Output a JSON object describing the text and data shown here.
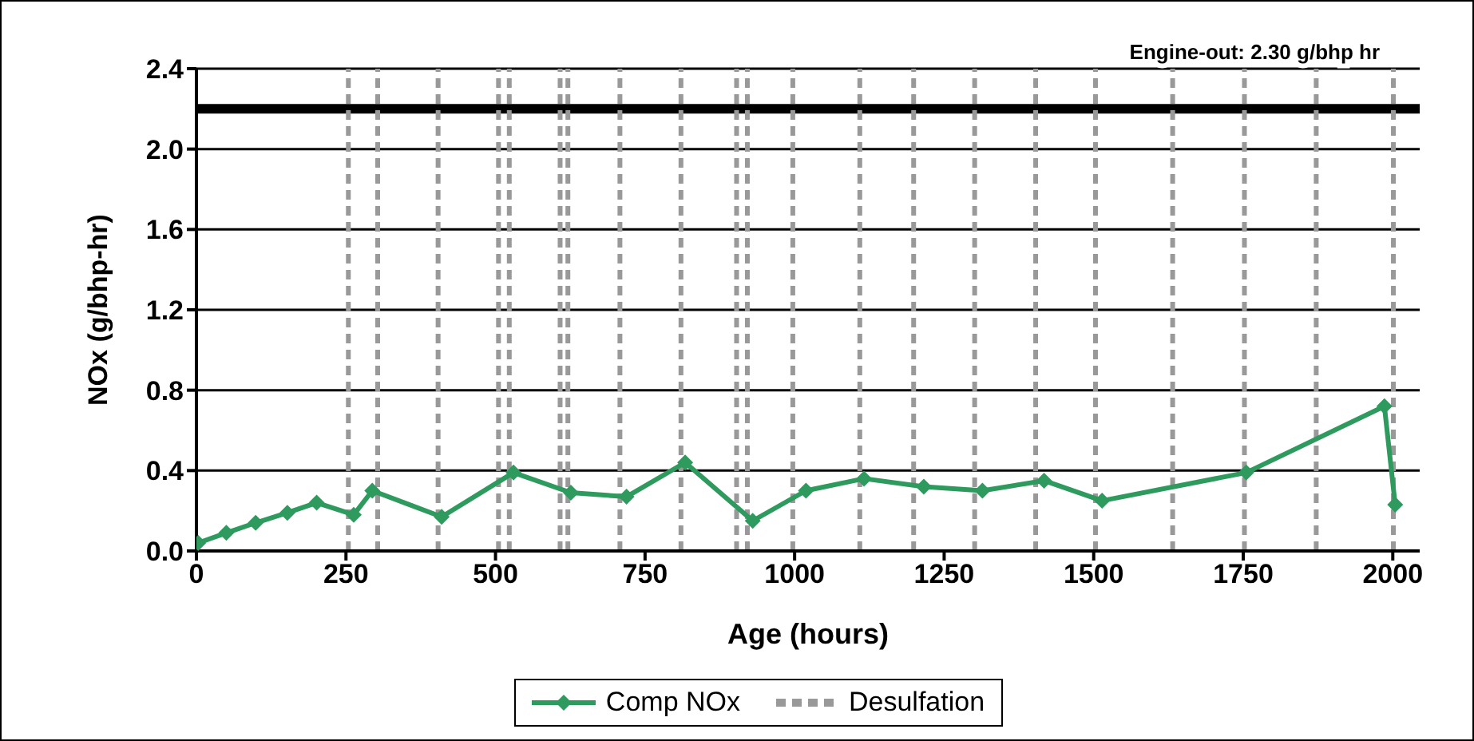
{
  "chart_data": {
    "type": "line",
    "xlabel": "Age (hours)",
    "ylabel": "NOx (g/bhp-hr)",
    "annotations": [
      "Engine-out: 2.30 g/bhp hr"
    ],
    "xlim": [
      0,
      2045
    ],
    "xticks": [
      0,
      250,
      500,
      750,
      1000,
      1250,
      1500,
      1750,
      2000
    ],
    "ylim": [
      0,
      2.4
    ],
    "yticks": [
      {
        "value": 0,
        "label": "0.0"
      },
      {
        "value": 0.4,
        "label": "0.4"
      },
      {
        "value": 0.8,
        "label": "0.8"
      },
      {
        "value": 1.2,
        "label": "1.2"
      },
      {
        "value": 1.6,
        "label": "1.6"
      },
      {
        "value": 2.0,
        "label": "2.0"
      },
      {
        "value": 2.4,
        "label": "2.4"
      }
    ],
    "grid": "y",
    "legend": "bottom",
    "marker": "diamond",
    "line_style": "solid",
    "series": [
      {
        "name": "Comp NOx",
        "color": "#2e9a5e",
        "x": [
          3,
          50,
          99,
          152,
          201,
          263,
          294,
          410,
          530,
          626,
          719,
          817,
          930,
          1019,
          1116,
          1216,
          1314,
          1417,
          1514,
          1755,
          1986,
          2004
        ],
        "values": [
          0.04,
          0.09,
          0.14,
          0.19,
          0.24,
          0.18,
          0.3,
          0.17,
          0.39,
          0.29,
          0.27,
          0.44,
          0.15,
          0.3,
          0.36,
          0.32,
          0.3,
          0.35,
          0.25,
          0.39,
          0.72,
          0.23
        ]
      }
    ],
    "ref_lines": [
      {
        "axis": "y",
        "value": 2.2,
        "color": "#000000",
        "line_style": "solid"
      },
      {
        "axis": "x",
        "value": 254,
        "label": "Desulfation",
        "color": "#999999",
        "line_style": "dashed"
      },
      {
        "axis": "x",
        "value": 303,
        "color": "#999999",
        "line_style": "dashed"
      },
      {
        "axis": "x",
        "value": 404,
        "color": "#999999",
        "line_style": "dashed"
      },
      {
        "axis": "x",
        "value": 505,
        "color": "#999999",
        "line_style": "dashed"
      },
      {
        "axis": "x",
        "value": 523,
        "color": "#999999",
        "line_style": "dashed"
      },
      {
        "axis": "x",
        "value": 608,
        "color": "#999999",
        "line_style": "dashed"
      },
      {
        "axis": "x",
        "value": 621,
        "color": "#999999",
        "line_style": "dashed"
      },
      {
        "axis": "x",
        "value": 708,
        "color": "#999999",
        "line_style": "dashed"
      },
      {
        "axis": "x",
        "value": 810,
        "color": "#999999",
        "line_style": "dashed"
      },
      {
        "axis": "x",
        "value": 903,
        "color": "#999999",
        "line_style": "dashed"
      },
      {
        "axis": "x",
        "value": 921,
        "color": "#999999",
        "line_style": "dashed"
      },
      {
        "axis": "x",
        "value": 997,
        "color": "#999999",
        "line_style": "dashed"
      },
      {
        "axis": "x",
        "value": 1109,
        "color": "#999999",
        "line_style": "dashed"
      },
      {
        "axis": "x",
        "value": 1199,
        "color": "#999999",
        "line_style": "dashed"
      },
      {
        "axis": "x",
        "value": 1301,
        "color": "#999999",
        "line_style": "dashed"
      },
      {
        "axis": "x",
        "value": 1403,
        "color": "#999999",
        "line_style": "dashed"
      },
      {
        "axis": "x",
        "value": 1503,
        "color": "#999999",
        "line_style": "dashed"
      },
      {
        "axis": "x",
        "value": 1632,
        "color": "#999999",
        "line_style": "dashed"
      },
      {
        "axis": "x",
        "value": 1752,
        "color": "#999999",
        "line_style": "dashed"
      },
      {
        "axis": "x",
        "value": 1872,
        "color": "#999999",
        "line_style": "dashed"
      },
      {
        "axis": "x",
        "value": 2001,
        "color": "#999999",
        "line_style": "dashed"
      }
    ]
  }
}
